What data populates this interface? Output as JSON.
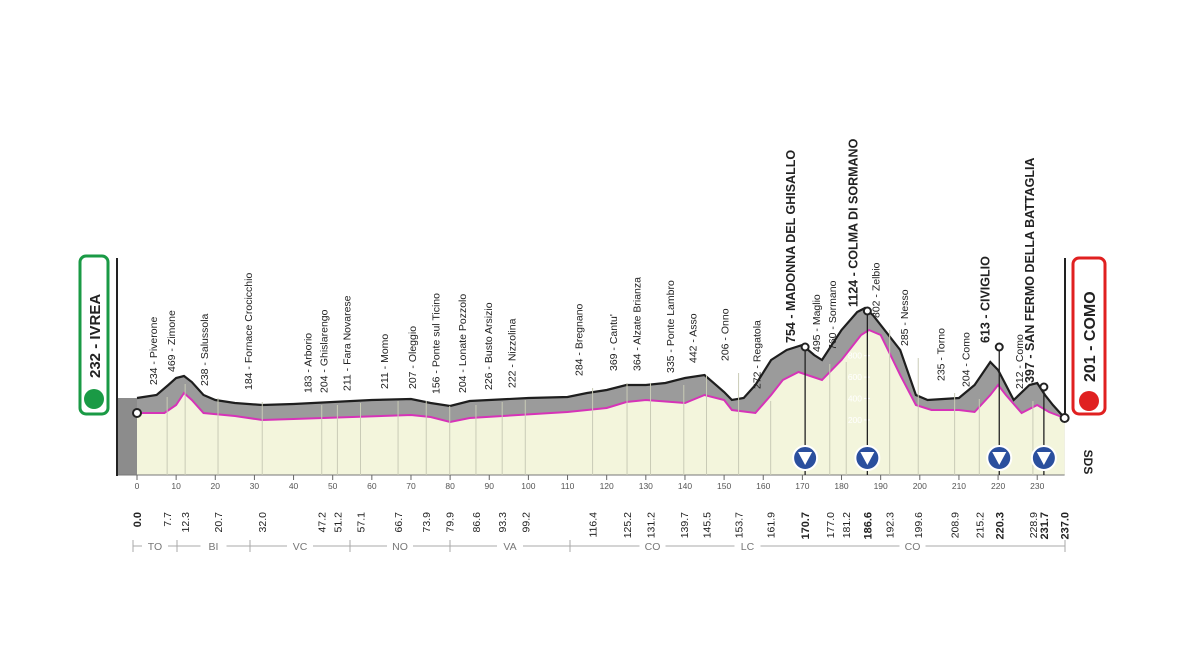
{
  "start": {
    "label": "232 - IVREA",
    "km": "0.0"
  },
  "finish": {
    "label": "201 - COMO",
    "km": "237.0"
  },
  "places": [
    {
      "label": "234 - Piverone",
      "km": "7.7"
    },
    {
      "label": "469 - Zimone",
      "km": "12.3"
    },
    {
      "label": "238 - Salussola",
      "km": "20.7"
    },
    {
      "label": "184 - Fornace Crocicchio",
      "km": "32.0"
    },
    {
      "label": "183 - Arborio",
      "km": "47.2"
    },
    {
      "label": "204 - Ghislarengo",
      "km": "51.2"
    },
    {
      "label": "211 - Fara Novarese",
      "km": "57.1"
    },
    {
      "label": "211 - Momo",
      "km": "66.7"
    },
    {
      "label": "207 - Oleggio",
      "km": "73.9"
    },
    {
      "label": "156 - Ponte sul Ticino",
      "km": "79.9"
    },
    {
      "label": "204 - Lonate Pozzolo",
      "km": "86.6"
    },
    {
      "label": "226 - Busto Arsizio",
      "km": "93.3"
    },
    {
      "label": "222 - Nizzolina",
      "km": "99.2"
    },
    {
      "label": "284 - Bregnano",
      "km": "116.4"
    },
    {
      "label": "369 - Cantu'",
      "km": "125.2"
    },
    {
      "label": "364 - Alzate Brianza",
      "km": "131.2"
    },
    {
      "label": "335 - Ponte Lambro",
      "km": "139.7"
    },
    {
      "label": "442 - Asso",
      "km": "145.5"
    },
    {
      "label": "206 - Onno",
      "km": "153.7"
    },
    {
      "label": "272 - Regatola",
      "km": "161.9"
    },
    {
      "label": "754 - MADONNA DEL GHISALLO",
      "km": "170.7",
      "climb": true
    },
    {
      "label": "495 - Maglio",
      "km": "177.0"
    },
    {
      "label": "760 - Sormano",
      "km": "181.2"
    },
    {
      "label": "1124 - COLMA DI SORMANO",
      "km": "186.6",
      "climb": true
    },
    {
      "label": "802 - Zelbio",
      "km": "192.3"
    },
    {
      "label": "285 - Nesso",
      "km": "199.6"
    },
    {
      "label": "235 - Torno",
      "km": "208.9"
    },
    {
      "label": "204 - Como",
      "km": "215.2"
    },
    {
      "label": "613 - CIVIGLIO",
      "km": "220.3",
      "climb": true
    },
    {
      "label": "212 - Como",
      "km": "228.9"
    },
    {
      "label": "397 - SAN FERMO DELLA BATTAGLIA",
      "km": "231.7",
      "climb": true
    }
  ],
  "distance_ticks": [
    0,
    10,
    20,
    30,
    40,
    50,
    60,
    70,
    80,
    90,
    100,
    110,
    120,
    130,
    140,
    150,
    160,
    170,
    180,
    190,
    200,
    210,
    220,
    230
  ],
  "altitude_ticks": [
    200,
    400,
    600,
    800
  ],
  "regions": [
    "TO",
    "BI",
    "VC",
    "NO",
    "VA",
    "CO",
    "LC",
    "CO"
  ],
  "logo": "SDS"
}
